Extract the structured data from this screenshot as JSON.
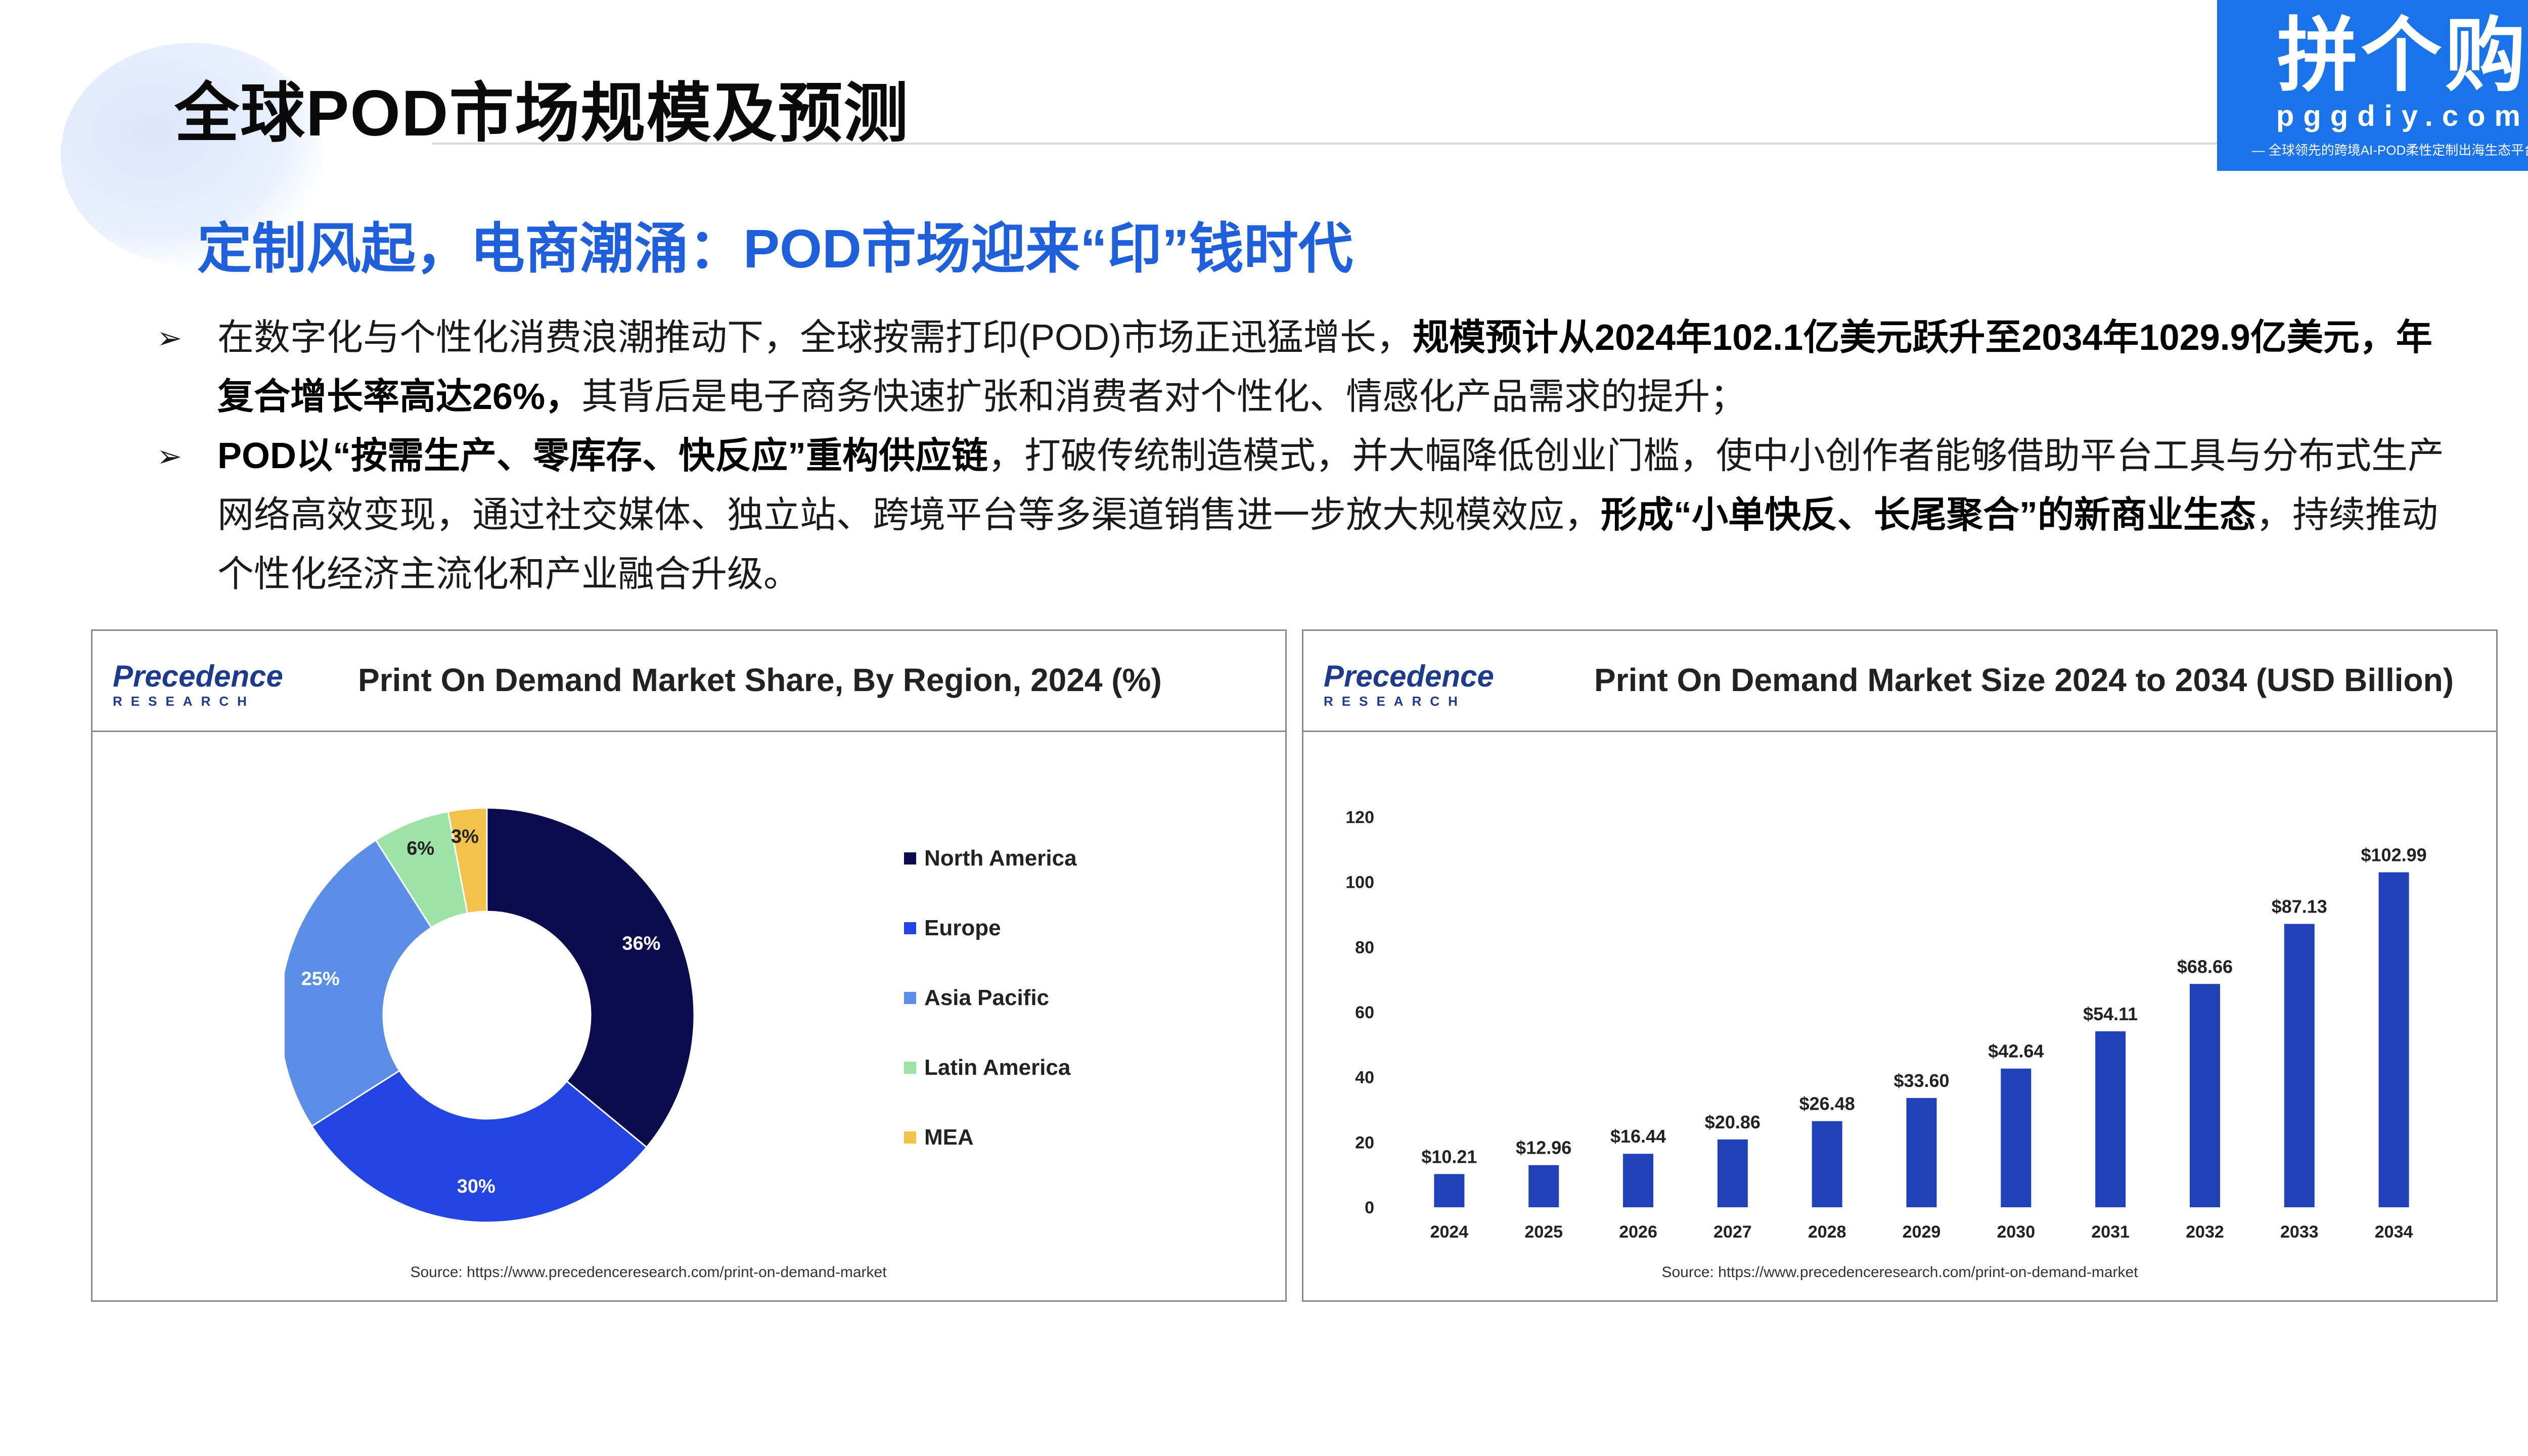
{
  "header": {
    "title": "全球POD市场规模及预测",
    "subtitle": "定制风起，电商潮涌：POD市场迎来“印”钱时代"
  },
  "logo": {
    "main": "拼个购",
    "url": "pggdiy.com",
    "slogan": "— 全球领先的跨境AI-POD柔性定制出海生态平台 —"
  },
  "bullets": [
    {
      "t1": "在数字化与个性化消费浪潮推动下，全球按需打印(POD)市场正迅猛增长，",
      "b1": "规模预计从2024年102.1亿美元跃升至2034年1029.9亿美元，年复合增长率高达26%，",
      "t2": "其背后是电子商务快速扩张和消费者对个性化、情感化产品需求的提升；"
    },
    {
      "b1": "POD以“按需生产、零库存、快反应”重构供应链",
      "t1": "，打破传统制造模式，并大幅降低创业门槛，使中小创作者能够借助平台工具与分布式生产网络高效变现，通过社交媒体、独立站、跨境平台等多渠道销售进一步放大规模效应，",
      "b2": "形成“小单快反、长尾聚合”的新商业生态",
      "t2": "，持续推动个性化经济主流化和产业融合升级。"
    }
  ],
  "panels": {
    "brand_name": "Precedence",
    "brand_sub": "RESEARCH",
    "source": "Source: https://www.precedenceresearch.com/print-on-demand-market"
  },
  "chart_data": [
    {
      "type": "pie",
      "variant": "donut",
      "title": "Print On Demand Market Share, By Region, 2024 (%)",
      "legend_position": "right",
      "slices": [
        {
          "name": "North America",
          "value": 36,
          "label": "36%",
          "color": "#0b0c4e"
        },
        {
          "name": "Europe",
          "value": 30,
          "label": "30%",
          "color": "#2345e3"
        },
        {
          "name": "Asia Pacific",
          "value": 25,
          "label": "25%",
          "color": "#5b8ee6"
        },
        {
          "name": "Latin America",
          "value": 6,
          "label": "6%",
          "color": "#9de3a8"
        },
        {
          "name": "MEA",
          "value": 3,
          "label": "3%",
          "color": "#f3c24a"
        }
      ]
    },
    {
      "type": "bar",
      "title": "Print On Demand Market Size 2024 to 2034 (USD Billion)",
      "categories": [
        "2024",
        "2025",
        "2026",
        "2027",
        "2028",
        "2029",
        "2030",
        "2031",
        "2032",
        "2033",
        "2034"
      ],
      "values": [
        10.21,
        12.96,
        16.44,
        20.86,
        26.48,
        33.6,
        42.64,
        54.11,
        68.66,
        87.13,
        102.99
      ],
      "data_labels": [
        "$10.21",
        "$12.96",
        "$16.44",
        "$20.86",
        "$26.48",
        "$33.60",
        "$42.64",
        "$54.11",
        "$68.66",
        "$87.13",
        "$102.99"
      ],
      "ylim": [
        0,
        120
      ],
      "yticks": [
        0,
        20,
        40,
        60,
        80,
        100,
        120
      ],
      "color": "#2141b8",
      "grid": false
    }
  ]
}
